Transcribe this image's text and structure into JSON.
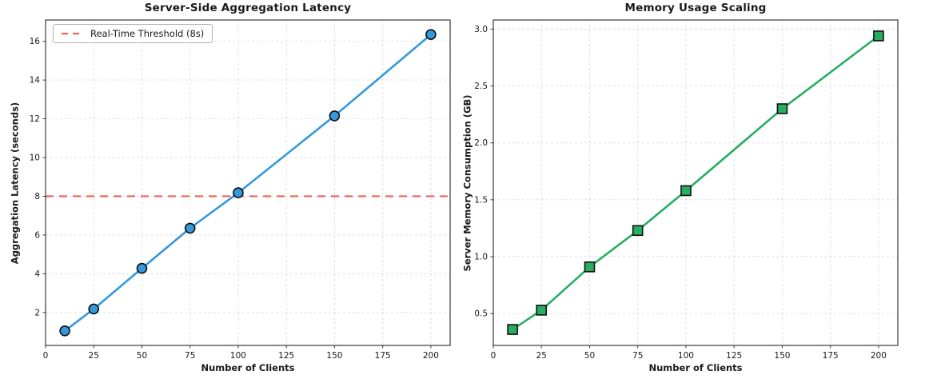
{
  "figure": {
    "background_color": "#ffffff",
    "grid_on": true
  },
  "chart_data": [
    {
      "type": "line",
      "title": "Server-Side Aggregation Latency",
      "xlabel": "Number of Clients",
      "ylabel": "Aggregation Latency (seconds)",
      "x": [
        10,
        25,
        50,
        75,
        100,
        150,
        200
      ],
      "values": [
        1.05,
        2.18,
        4.28,
        6.35,
        8.18,
        12.15,
        16.35
      ],
      "xlim": [
        0,
        210
      ],
      "ylim": [
        0.3,
        17.1
      ],
      "xticks": [
        0,
        25,
        50,
        75,
        100,
        125,
        150,
        175,
        200
      ],
      "xtick_labels": [
        "0",
        "25",
        "50",
        "75",
        "100",
        "125",
        "150",
        "175",
        "200"
      ],
      "yticks": [
        2,
        4,
        6,
        8,
        10,
        12,
        14,
        16
      ],
      "ytick_labels": [
        "2",
        "4",
        "6",
        "8",
        "10",
        "12",
        "14",
        "16"
      ],
      "marker": "circle",
      "line_color": "#3498db",
      "marker_fill": "#3498db",
      "marker_edge_color": "#111111",
      "threshold": {
        "value": 8,
        "label": "Real-Time Threshold (8s)",
        "color": "#e74c3c",
        "style": "dashed"
      },
      "legend_position": "upper-left"
    },
    {
      "type": "line",
      "title": "Memory Usage Scaling",
      "xlabel": "Number of Clients",
      "ylabel": "Server Memory Consumption (GB)",
      "x": [
        10,
        25,
        50,
        75,
        100,
        150,
        200
      ],
      "values": [
        0.36,
        0.53,
        0.91,
        1.23,
        1.58,
        2.3,
        2.94
      ],
      "xlim": [
        0,
        210
      ],
      "ylim": [
        0.22,
        3.08
      ],
      "xticks": [
        0,
        25,
        50,
        75,
        100,
        125,
        150,
        175,
        200
      ],
      "xtick_labels": [
        "0",
        "25",
        "50",
        "75",
        "100",
        "125",
        "150",
        "175",
        "200"
      ],
      "yticks": [
        0.5,
        1.0,
        1.5,
        2.0,
        2.5,
        3.0
      ],
      "ytick_labels": [
        "0.5",
        "1.0",
        "1.5",
        "2.0",
        "2.5",
        "3.0"
      ],
      "marker": "square",
      "line_color": "#27ae60",
      "marker_fill": "#27ae60",
      "marker_edge_color": "#111111"
    }
  ]
}
